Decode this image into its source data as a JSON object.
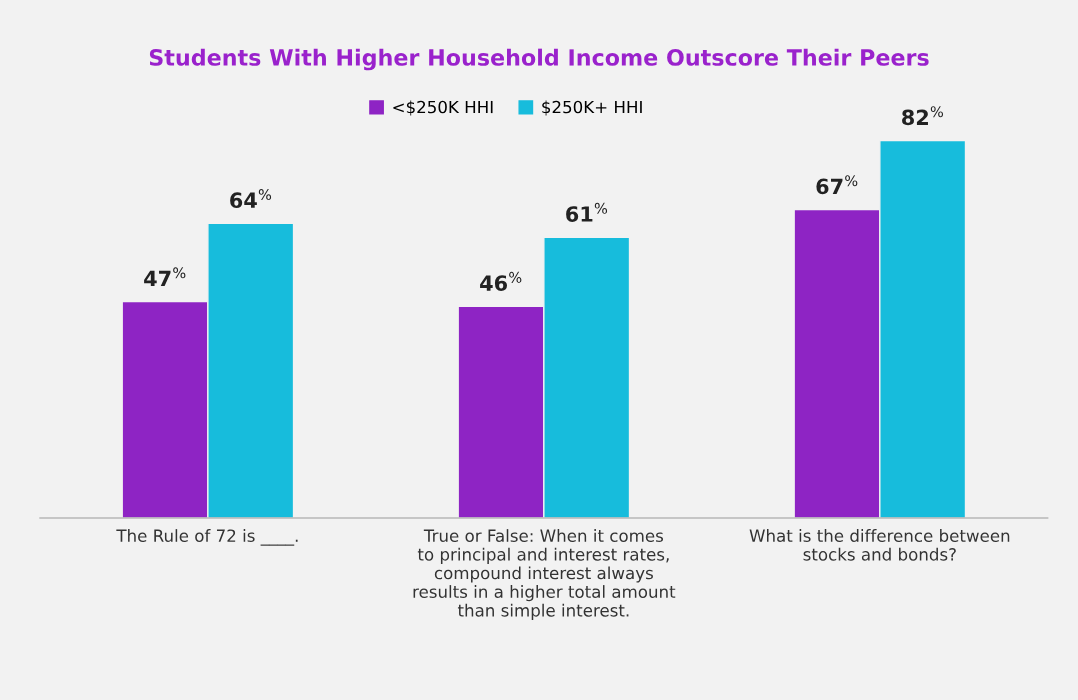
{
  "chart_data": {
    "type": "bar",
    "title": "Students With Higher Household Income Outscore Their Peers",
    "categories": [
      "The Rule of 72 is ____.",
      "True or False: When it comes\nto principal and interest rates,\ncompound interest always\nresults in a higher total amount\nthan simple interest.",
      "What is the difference between\nstocks and bonds?"
    ],
    "series": [
      {
        "name": "<$250K HHI",
        "color": "#8e24c4",
        "values": [
          47,
          46,
          67
        ],
        "value_labels": [
          "47$^{%}$",
          "46$^{%}$",
          "67$^{%}$"
        ]
      },
      {
        "name": "$250K+ HHI",
        "color": "#17bcdc",
        "values": [
          64,
          61,
          82
        ],
        "value_labels": [
          "64$^{%}$",
          "61$^{%}$",
          "82$^{%}$"
        ]
      }
    ],
    "legend": "top",
    "grid": false
  }
}
